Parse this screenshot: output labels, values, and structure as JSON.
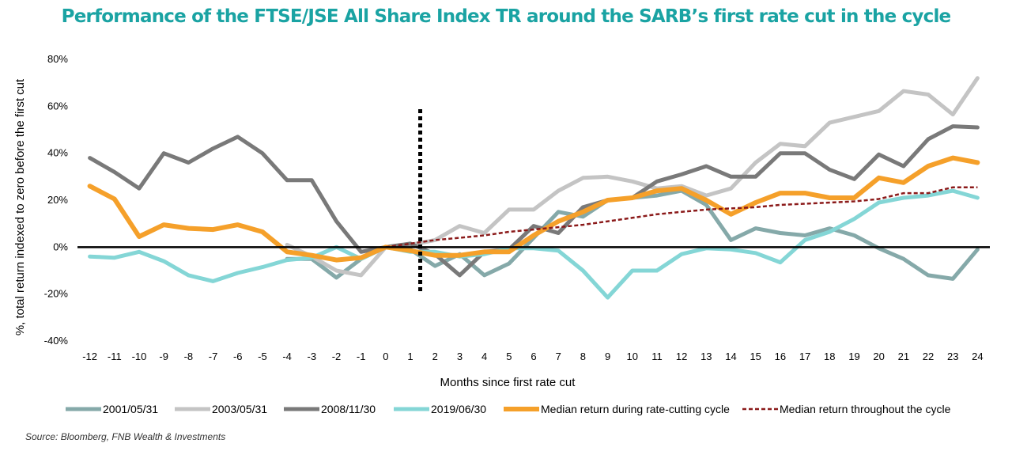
{
  "chart_data": {
    "type": "line",
    "title": "Performance of the FTSE/JSE All Share Index TR around the SARB’s first rate cut in the cycle",
    "xlabel": "Months since first rate cut",
    "ylabel": "%, total return indexed to zero before the first cut",
    "x": [
      -12,
      -11,
      -10,
      -9,
      -8,
      -7,
      -6,
      -5,
      -4,
      -3,
      -2,
      -1,
      0,
      1,
      2,
      3,
      4,
      5,
      6,
      7,
      8,
      9,
      10,
      11,
      12,
      13,
      14,
      15,
      16,
      17,
      18,
      19,
      20,
      21,
      22,
      23,
      24
    ],
    "ylim": [
      -40,
      80
    ],
    "yticks": [
      -40,
      -20,
      0,
      20,
      40,
      60,
      80
    ],
    "yticklabels": [
      "-40%",
      "-20%",
      "0%",
      "20%",
      "40%",
      "60%",
      "80%"
    ],
    "grid": false,
    "legend_position": "bottom",
    "cut_marker_x": 1.4,
    "series": [
      {
        "name": "2001/05/31",
        "color": "#85a9a9",
        "style": "solid",
        "values": [
          null,
          null,
          null,
          null,
          null,
          null,
          null,
          null,
          -5,
          -5,
          -13,
          -5,
          0,
          -1,
          -8,
          -3,
          -12,
          -7,
          4,
          15,
          13,
          20,
          21,
          22,
          24,
          18,
          3,
          8,
          6,
          5,
          8,
          5,
          -0.5,
          -5,
          -12,
          -13.5,
          -1
        ]
      },
      {
        "name": "2003/05/31",
        "color": "#c4c4c4",
        "style": "solid",
        "values": [
          null,
          null,
          null,
          null,
          null,
          null,
          null,
          null,
          1,
          -4,
          -10,
          -12,
          0,
          1,
          3,
          9,
          6,
          16,
          16,
          24,
          29.5,
          30,
          28,
          25,
          26,
          22,
          25,
          36,
          44,
          43,
          53,
          55.5,
          58,
          66.5,
          65,
          56.5,
          72
        ]
      },
      {
        "name": "2008/11/30",
        "color": "#797979",
        "style": "solid",
        "values": [
          38,
          32,
          25,
          40,
          36,
          42,
          47,
          40,
          28.5,
          28.5,
          11,
          -2,
          0,
          1.5,
          -3,
          -12,
          -2,
          -1,
          9,
          6,
          17,
          20,
          21,
          28,
          31,
          34.5,
          30,
          30,
          40,
          40,
          33,
          29,
          39.5,
          34.5,
          46,
          51.5,
          51
        ]
      },
      {
        "name": "2019/06/30",
        "color": "#84d6d6",
        "style": "solid",
        "values": [
          -4,
          -4.5,
          -2,
          -6,
          -12,
          -14.5,
          -11,
          -8.5,
          -5.5,
          -4.5,
          0,
          -5,
          0,
          -2,
          -2,
          -4,
          -3,
          -0.5,
          -0.5,
          -1.5,
          -10,
          -21.5,
          -10,
          -10,
          -3,
          -0.5,
          -1,
          -2.5,
          -6.5,
          3,
          6.5,
          12,
          19,
          21,
          22,
          24,
          21
        ]
      },
      {
        "name": "Median return during rate-cutting cycle",
        "color": "#f5a02a",
        "style": "solid-thick",
        "values": [
          26,
          20.5,
          4.5,
          9.5,
          8,
          7.5,
          9.5,
          6.5,
          -2,
          -3.5,
          -5.5,
          -4.5,
          0,
          -1.5,
          -3.5,
          -3.5,
          -2,
          -2,
          5,
          11,
          15,
          20,
          21,
          24,
          25,
          20,
          14,
          19,
          23,
          23,
          21,
          21,
          29.5,
          27.5,
          34.5,
          38,
          36
        ]
      },
      {
        "name": "Median return throughout the cycle",
        "color": "#8b1a1a",
        "style": "dashed",
        "values": [
          null,
          null,
          null,
          null,
          null,
          null,
          null,
          null,
          null,
          null,
          null,
          null,
          0,
          1.5,
          3,
          4,
          5,
          6.5,
          7.5,
          8.5,
          9.5,
          11,
          12.5,
          14,
          15,
          16,
          16.5,
          17,
          18,
          18.5,
          19,
          19.5,
          20.5,
          23,
          23,
          25.5,
          25.5
        ]
      }
    ]
  },
  "source": "Source: Bloomberg, FNB Wealth & Investments"
}
